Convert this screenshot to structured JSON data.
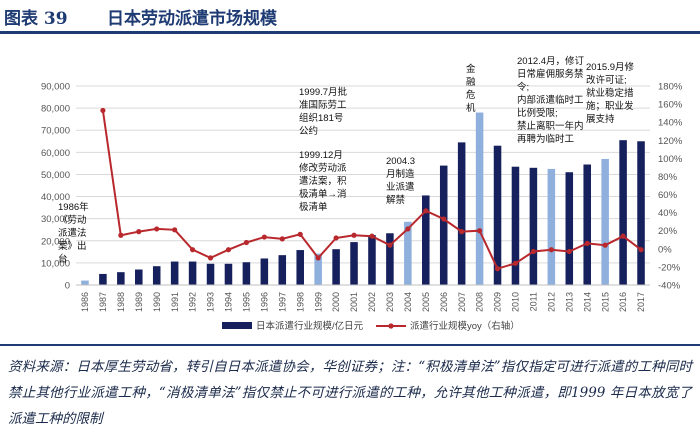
{
  "header": {
    "figure_label": "图表 39",
    "title": "日本劳动派遣市场规模"
  },
  "chart_data": {
    "type": "bar",
    "categories": [
      "1986",
      "1987",
      "1988",
      "1989",
      "1990",
      "1991",
      "1992",
      "1993",
      "1994",
      "1995",
      "1996",
      "1997",
      "1998",
      "1999",
      "2000",
      "2001",
      "2002",
      "2003",
      "2004",
      "2005",
      "2006",
      "2007",
      "2008",
      "2009",
      "2010",
      "2011",
      "2012",
      "2013",
      "2014",
      "2015",
      "2016",
      "2017"
    ],
    "y_left": {
      "ylim": [
        0,
        90000
      ],
      "ticks": [
        "0",
        "10,000",
        "20,000",
        "30,000",
        "40,000",
        "50,000",
        "60,000",
        "70,000",
        "80,000",
        "90,000"
      ]
    },
    "y_right": {
      "ylim": [
        -40,
        180
      ],
      "ticks": [
        "-40%",
        "-20%",
        "0%",
        "20%",
        "40%",
        "60%",
        "80%",
        "100%",
        "120%",
        "140%",
        "160%",
        "180%"
      ]
    },
    "series": [
      {
        "name": "日本派遣行业规模/亿日元",
        "kind": "bar",
        "axis": "left",
        "values": [
          2000,
          5000,
          5800,
          7000,
          8500,
          10600,
          10600,
          9600,
          9600,
          10300,
          12000,
          13500,
          15800,
          14200,
          16200,
          19400,
          22600,
          23400,
          28600,
          40500,
          54000,
          64500,
          78000,
          63000,
          53500,
          53000,
          52500,
          51000,
          54500,
          57000,
          65500,
          65000
        ]
      },
      {
        "name": "派遣行业规模yoy（右轴）",
        "kind": "line",
        "axis": "right",
        "values": [
          null,
          153,
          15,
          19,
          22,
          21,
          -1,
          -10,
          -1,
          7,
          13,
          11,
          16,
          -10,
          12,
          15,
          14,
          4,
          22,
          42,
          33,
          19,
          20,
          -22,
          -16,
          -3,
          -1,
          -3,
          6,
          4,
          14,
          -1
        ]
      }
    ],
    "highlighted_bars": [
      "1986",
      "1999",
      "2004",
      "2008",
      "2012",
      "2015"
    ],
    "legend_position": "bottom",
    "colors": {
      "bar": "#15205c",
      "bar_highlight": "#8fb0dd",
      "line": "#b8282d",
      "grid": "#d9d9d9"
    },
    "annotations": [
      {
        "year": "1986",
        "lines": [
          "1986年",
          "《劳动",
          "派遣法",
          "案》出",
          "台"
        ]
      },
      {
        "year": "1999",
        "lines": [
          "1999.7月批",
          "准国际劳工",
          "组织181号",
          "公约"
        ]
      },
      {
        "year": "1999",
        "lines": [
          "1999.12月",
          "修改劳动派",
          "遣法案，积",
          "极清单→消",
          "极清单"
        ]
      },
      {
        "year": "2004",
        "lines": [
          "2004.3",
          "月制造",
          "业派遣",
          "解禁"
        ]
      },
      {
        "year": "2008",
        "lines": [
          "金",
          "融",
          "危",
          "机"
        ]
      },
      {
        "year": "2012",
        "lines": [
          "2012.4月，修订",
          "日常雇佣服务禁",
          "令;",
          "内部派遣临时工",
          "比例受限;",
          "禁止离职一年内",
          "再聘为临时工"
        ]
      },
      {
        "year": "2015",
        "lines": [
          "2015.9月修",
          "改许可证;",
          "就业稳定措",
          "施；职业发",
          "展支持"
        ]
      }
    ]
  },
  "footer": {
    "source": "资料来源：日本厚生劳动省，转引自日本派遣协会，华创证券；注：“积极清单法”指仅指定可进行派遣的工种同时禁止其他行业派遣工种，“消极清单法”指仅禁止不可进行派遣的工种，允许其他工种派遣，即1999 年日本放宽了派遣工种的限制"
  }
}
